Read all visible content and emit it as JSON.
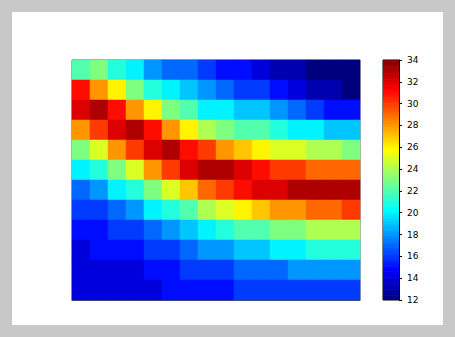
{
  "chart_data": {
    "type": "heatmap",
    "tick_labels": false,
    "cells": [
      [
        22,
        23,
        21,
        20,
        18,
        17,
        17,
        16,
        15,
        15,
        14,
        13,
        13,
        12,
        12,
        12
      ],
      [
        31,
        28,
        26,
        23,
        21,
        20,
        19,
        18,
        17,
        16,
        16,
        15,
        14,
        13,
        13,
        12
      ],
      [
        32,
        33,
        31,
        28,
        26,
        23,
        22,
        20,
        20,
        19,
        19,
        18,
        17,
        16,
        15,
        15
      ],
      [
        28,
        30,
        32,
        33,
        31,
        28,
        26,
        24,
        23,
        22,
        22,
        21,
        20,
        20,
        19,
        19
      ],
      [
        23,
        25,
        28,
        30,
        32,
        33,
        31,
        30,
        28,
        27,
        26,
        25,
        25,
        24,
        24,
        23
      ],
      [
        20,
        21,
        23,
        25,
        28,
        30,
        32,
        33,
        33,
        32,
        31,
        30,
        30,
        29,
        29,
        29
      ],
      [
        17,
        18,
        20,
        21,
        23,
        25,
        27,
        29,
        30,
        31,
        32,
        32,
        33,
        33,
        33,
        33
      ],
      [
        16,
        16,
        17,
        18,
        20,
        21,
        22,
        24,
        25,
        26,
        27,
        28,
        28,
        29,
        29,
        30
      ],
      [
        15,
        15,
        16,
        16,
        17,
        18,
        19,
        20,
        21,
        22,
        22,
        23,
        23,
        24,
        24,
        24
      ],
      [
        14,
        15,
        15,
        15,
        16,
        16,
        17,
        18,
        18,
        19,
        19,
        20,
        20,
        21,
        21,
        21
      ],
      [
        14,
        14,
        14,
        14,
        15,
        15,
        16,
        16,
        16,
        17,
        17,
        17,
        18,
        18,
        18,
        18
      ],
      [
        14,
        14,
        14,
        14,
        14,
        15,
        15,
        15,
        15,
        16,
        16,
        16,
        16,
        16,
        16,
        16
      ]
    ],
    "colorbar": {
      "range": [
        12,
        34
      ],
      "ticks": [
        12,
        14,
        16,
        18,
        20,
        22,
        24,
        26,
        28,
        30,
        32,
        34
      ]
    }
  }
}
